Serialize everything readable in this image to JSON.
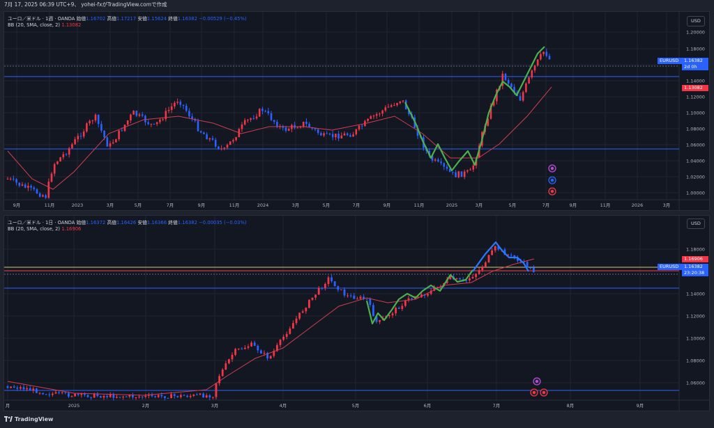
{
  "header": {
    "text": "7月 17, 2025 06:39 UTC+9、 yohei-fxがTradingView.comで作成"
  },
  "pane1": {
    "legend_title": "ユーロ／米ドル · 1週 · OANDA",
    "open_label": "始値",
    "open": "1.16702",
    "high_label": "高値",
    "high": "1.17217",
    "low_label": "安値",
    "low": "1.15624",
    "close_label": "終値",
    "close": "1.16382",
    "change": "−0.00529 (−0.45%)",
    "bb_label": "BB (20, SMA, close, 2)",
    "bb_value": "1.13082",
    "currency": "USD",
    "symbol_tag": "EURUSD",
    "price_tag": "1.16382",
    "countdown": "2d 0h",
    "bb_tag": "1.13082",
    "y_ticks": [
      "1.20000",
      "1.18000",
      "1.16000",
      "1.14000",
      "1.12000",
      "1.10000",
      "1.08000",
      "1.06000",
      "1.04000",
      "1.02000",
      "1.00000"
    ],
    "x_ticks": [
      "9月",
      "11月",
      "2023",
      "3月",
      "5月",
      "7月",
      "9月",
      "11月",
      "2024",
      "3月",
      "5月",
      "7月",
      "9月",
      "11月",
      "2025",
      "3月",
      "5月",
      "7月",
      "9月",
      "11月",
      "2026",
      "3月"
    ]
  },
  "pane2": {
    "legend_title": "ユーロ／米ドル · 1日 · OANDA",
    "open_label": "始値",
    "open": "1.16372",
    "high_label": "高値",
    "high": "1.16426",
    "low_label": "安値",
    "low": "1.16366",
    "close_label": "終値",
    "close": "1.16382",
    "change": "−0.00035 (−0.03%)",
    "bb_label": "BB (20, SMA, close, 2)",
    "bb_value": "1.16906",
    "currency": "USD",
    "symbol_tag": "EURUSD",
    "price_tag": "1.16382",
    "countdown": "23:20:38",
    "bb_tag": "1.16906",
    "y_ticks": [
      "1.18000",
      "1.16000",
      "1.14000",
      "1.12000",
      "1.10000",
      "1.08000",
      "1.06000"
    ],
    "x_ticks": [
      "月",
      "2025",
      "2月",
      "3月",
      "4月",
      "5月",
      "6月",
      "7月",
      "8月",
      "9月"
    ]
  },
  "footer": {
    "brand": "TradingView"
  },
  "colors": {
    "up": "#f23645",
    "down": "#2962ff",
    "bb": "#d23d4f",
    "green": "#4caf50",
    "hline": "#2962ff",
    "yellow": "#d8c776"
  }
}
